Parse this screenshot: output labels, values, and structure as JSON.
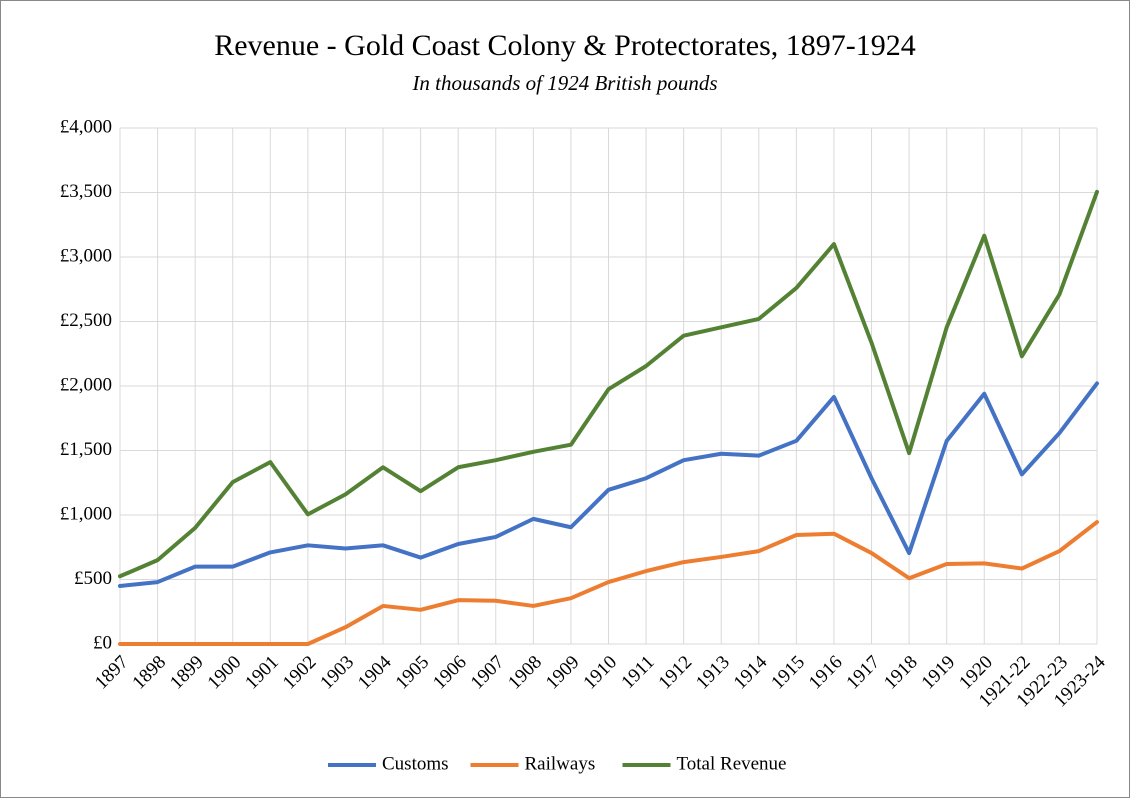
{
  "chart_data": {
    "type": "line",
    "title": "Revenue - Gold Coast Colony & Protectorates, 1897-1924",
    "subtitle": "In thousands of 1924 British pounds",
    "categories": [
      "1897",
      "1898",
      "1899",
      "1900",
      "1901",
      "1902",
      "1903",
      "1904",
      "1905",
      "1906",
      "1907",
      "1908",
      "1909",
      "1910",
      "1911",
      "1912",
      "1913",
      "1914",
      "1915",
      "1916",
      "1917",
      "1918",
      "1919",
      "1920",
      "1921-22",
      "1922-23",
      "1923-24"
    ],
    "series": [
      {
        "name": "Customs",
        "color": "#4472c4",
        "values": [
          450,
          480,
          600,
          600,
          710,
          765,
          740,
          765,
          670,
          775,
          830,
          970,
          905,
          1195,
          1285,
          1425,
          1475,
          1460,
          1575,
          1915,
          1285,
          705,
          1575,
          1940,
          1315,
          1635,
          2020
        ]
      },
      {
        "name": "Railways",
        "color": "#ed7d31",
        "values": [
          0,
          0,
          0,
          0,
          0,
          0,
          130,
          295,
          265,
          340,
          335,
          295,
          355,
          480,
          565,
          635,
          675,
          720,
          845,
          855,
          705,
          510,
          620,
          625,
          585,
          720,
          945
        ]
      },
      {
        "name": "Total Revenue",
        "color": "#548235",
        "values": [
          525,
          650,
          900,
          1255,
          1410,
          1005,
          1160,
          1370,
          1185,
          1370,
          1425,
          1490,
          1545,
          1975,
          2155,
          2390,
          2455,
          2520,
          2760,
          3100,
          2335,
          1480,
          2455,
          3165,
          2230,
          2710,
          3505
        ]
      }
    ],
    "ylim": [
      0,
      4000
    ],
    "yticks": [
      {
        "value": 0,
        "label": "£0"
      },
      {
        "value": 500,
        "label": "£500"
      },
      {
        "value": 1000,
        "label": "£1,000"
      },
      {
        "value": 1500,
        "label": "£1,500"
      },
      {
        "value": 2000,
        "label": "£2,000"
      },
      {
        "value": 2500,
        "label": "£2,500"
      },
      {
        "value": 3000,
        "label": "£3,000"
      },
      {
        "value": 3500,
        "label": "£3,500"
      },
      {
        "value": 4000,
        "label": "£4,000"
      }
    ],
    "grid": true,
    "legend": "bottom"
  }
}
